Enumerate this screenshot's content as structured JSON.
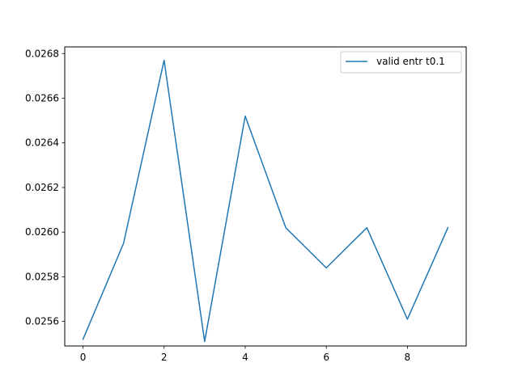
{
  "chart_data": {
    "type": "line",
    "title": "",
    "xlabel": "",
    "ylabel": "",
    "xlim": [
      -0.45,
      9.45
    ],
    "ylim": [
      0.02549,
      0.02683
    ],
    "xticks": [
      0,
      2,
      4,
      6,
      8
    ],
    "xtick_labels": [
      "0",
      "2",
      "4",
      "6",
      "8"
    ],
    "yticks": [
      0.0256,
      0.0258,
      0.026,
      0.0262,
      0.0264,
      0.0266,
      0.0268
    ],
    "ytick_labels": [
      "0.0256",
      "0.0258",
      "0.0260",
      "0.0262",
      "0.0264",
      "0.0266",
      "0.0268"
    ],
    "grid": false,
    "legend_position": "top-right",
    "series": [
      {
        "name": "valid entr t0.1",
        "color": "#1f77b4",
        "x": [
          0,
          1,
          2,
          3,
          4,
          5,
          6,
          7,
          8,
          9
        ],
        "y": [
          0.02552,
          0.02595,
          0.02677,
          0.02551,
          0.02652,
          0.02602,
          0.02584,
          0.02602,
          0.02561,
          0.02602
        ]
      }
    ]
  }
}
